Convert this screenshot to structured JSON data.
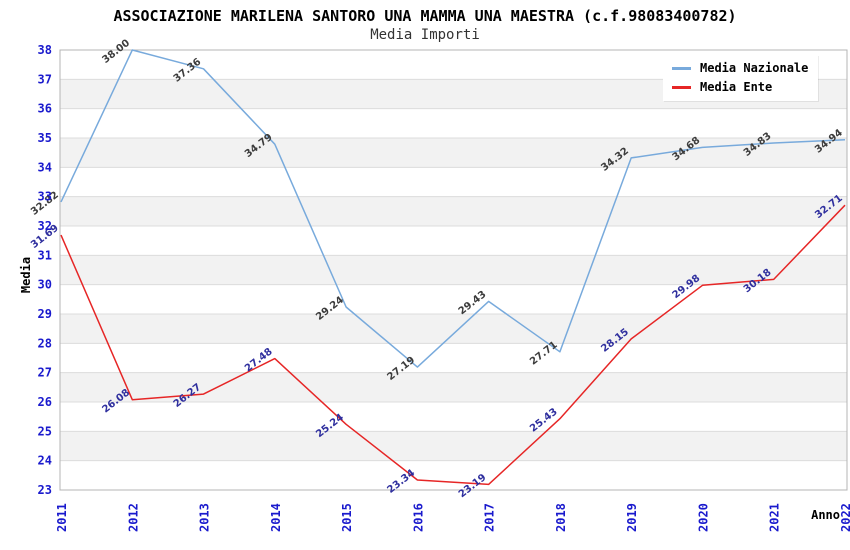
{
  "header": {
    "title": "ASSOCIAZIONE MARILENA SANTORO UNA MAMMA UNA MAESTRA (c.f.98083400782)",
    "subtitle": "Media Importi"
  },
  "colors": {
    "tick_label": "#1a1acd",
    "grid_line": "#dcdcdc",
    "plot_border": "#b4b4b4",
    "band_gray": "#f2f2f2",
    "axis_title": "#000000"
  },
  "chart_data": {
    "type": "line",
    "title": "ASSOCIAZIONE MARILENA SANTORO UNA MAMMA UNA MAESTRA (c.f.98083400782)",
    "subtitle": "Media Importi",
    "x": [
      2011,
      2012,
      2013,
      2014,
      2015,
      2016,
      2017,
      2018,
      2019,
      2020,
      2021,
      2022
    ],
    "xlabel": "Anno",
    "ylabel": "Media",
    "ylim": [
      23,
      38
    ],
    "ytick_step": 1,
    "grid": true,
    "band_fill": "alternating-gray-white",
    "legend_position": "top-right",
    "value_label_decimals": 2,
    "series": [
      {
        "name": "Media Nazionale",
        "line_color": "#78aadc",
        "label_color": "#3c3c3c",
        "values": [
          32.82,
          38.0,
          37.36,
          34.79,
          29.24,
          27.19,
          29.43,
          27.71,
          34.32,
          34.68,
          34.83,
          34.94
        ]
      },
      {
        "name": "Media Ente",
        "line_color": "#e62626",
        "label_color": "#2f2f9e",
        "values": [
          31.69,
          26.08,
          26.27,
          27.48,
          25.24,
          23.34,
          23.19,
          25.43,
          28.15,
          29.98,
          30.18,
          32.71
        ]
      }
    ]
  }
}
